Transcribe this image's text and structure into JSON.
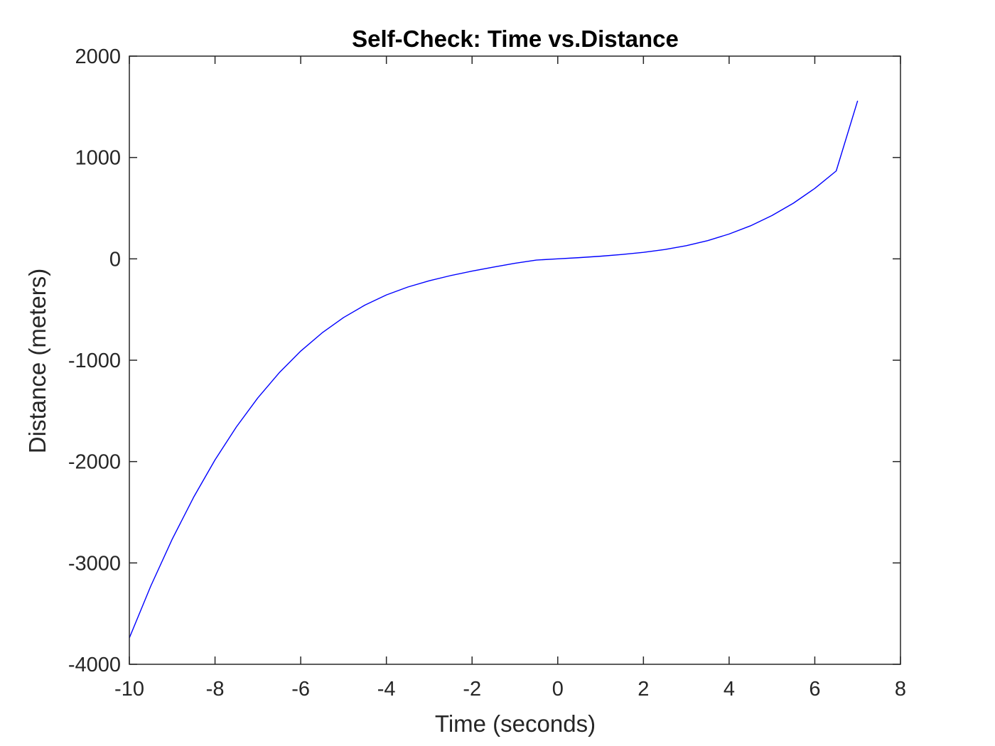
{
  "chart_data": {
    "type": "line",
    "title": "Self-Check: Time vs.Distance",
    "xlabel": "Time (seconds)",
    "ylabel": "Distance (meters)",
    "xlim": [
      -10,
      8
    ],
    "ylim": [
      -4000,
      2000
    ],
    "xticks": [
      -10,
      -8,
      -6,
      -4,
      -2,
      0,
      2,
      4,
      6,
      8
    ],
    "yticks": [
      -4000,
      -3000,
      -2000,
      -1000,
      0,
      1000,
      2000
    ],
    "grid": false,
    "box": true,
    "series": [
      {
        "color": "#0000ff",
        "x": [
          -10,
          -9.5,
          -9,
          -8.5,
          -8,
          -7.5,
          -7,
          -6.5,
          -6,
          -5.5,
          -5,
          -4.5,
          -4,
          -3.5,
          -3,
          -2.5,
          -2,
          -1.5,
          -1,
          -0.5,
          0,
          0.5,
          1,
          1.5,
          2,
          2.5,
          3,
          3.5,
          4,
          4.5,
          5,
          5.5,
          6,
          6.5,
          7
        ],
        "y": [
          -3740,
          -3228,
          -2766,
          -2352,
          -1983,
          -1657,
          -1371,
          -1123,
          -910,
          -730,
          -579,
          -456,
          -356,
          -278,
          -216,
          -165,
          -121,
          -81,
          -44,
          -12,
          0,
          12,
          26,
          43,
          64,
          92,
          130,
          180,
          245,
          326,
          427,
          549,
          695,
          867,
          1560
        ]
      }
    ]
  },
  "colors": {
    "background": "#ffffff",
    "axes": "#262626",
    "line": "#0000ff"
  }
}
